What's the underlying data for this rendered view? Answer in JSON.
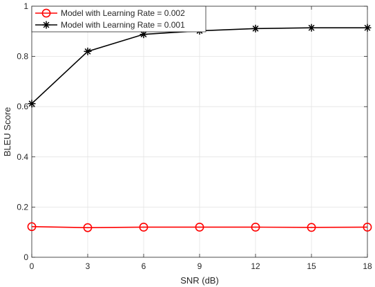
{
  "chart_data": {
    "type": "line",
    "title": "",
    "xlabel": "SNR (dB)",
    "ylabel": "BLEU Score",
    "x": [
      0,
      3,
      6,
      9,
      12,
      15,
      18
    ],
    "xlim": [
      0,
      18
    ],
    "ylim": [
      0,
      1
    ],
    "xticks": [
      0,
      3,
      6,
      9,
      12,
      15,
      18
    ],
    "yticks": [
      0,
      0.2,
      0.4,
      0.6,
      0.8,
      1
    ],
    "xtick_labels": [
      "0",
      "3",
      "6",
      "9",
      "12",
      "15",
      "18"
    ],
    "ytick_labels": [
      "0",
      "0.2",
      "0.4",
      "0.6",
      "0.8",
      "1"
    ],
    "grid": true,
    "legend_position": "top-left",
    "series": [
      {
        "name": "Model with Learning Rate = 0.002",
        "values": [
          0.122,
          0.118,
          0.12,
          0.12,
          0.12,
          0.119,
          0.12
        ],
        "color": "#ff0000",
        "marker": "circle"
      },
      {
        "name": "Model with Learning Rate = 0.001",
        "values": [
          0.612,
          0.82,
          0.888,
          0.902,
          0.911,
          0.914,
          0.914
        ],
        "color": "#000000",
        "marker": "asterisk"
      }
    ]
  }
}
